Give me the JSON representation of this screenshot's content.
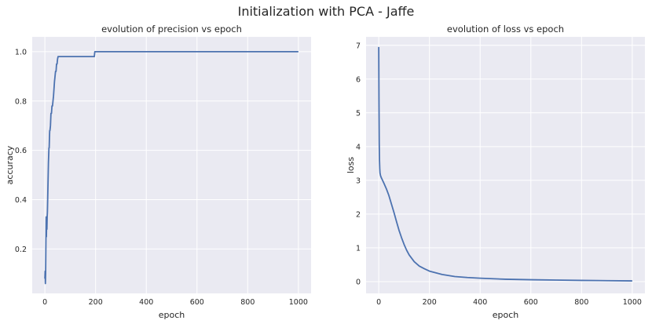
{
  "suptitle": "Initialization with PCA - Jaffe",
  "style": {
    "background": "#EAEAF2",
    "grid": "#FFFFFF",
    "line": "#4C72B0",
    "text": "#262626"
  },
  "chart_data": [
    {
      "type": "line",
      "title": "evolution of precision vs epoch",
      "xlabel": "epoch",
      "ylabel": "accuracy",
      "xlim": [
        -50,
        1050
      ],
      "ylim": [
        0.02,
        1.06
      ],
      "xticks": [
        0,
        200,
        400,
        600,
        800,
        1000
      ],
      "xtick_labels": [
        "0",
        "200",
        "400",
        "600",
        "800",
        "1000"
      ],
      "yticks": [
        0.2,
        0.4,
        0.6,
        0.8,
        1.0
      ],
      "ytick_labels": [
        "0.2",
        "0.4",
        "0.6",
        "0.8",
        "1.0"
      ],
      "grid": true,
      "series": [
        {
          "x": [
            0,
            1,
            2,
            3,
            4,
            5,
            6,
            7,
            8,
            9,
            10,
            11,
            12,
            13,
            14,
            15,
            16,
            17,
            18,
            19,
            20,
            22,
            24,
            26,
            28,
            30,
            32,
            34,
            36,
            38,
            40,
            42,
            44,
            46,
            48,
            50,
            52,
            54,
            56,
            58,
            60,
            63,
            65,
            100,
            150,
            195,
            197,
            200,
            300,
            400,
            500,
            600,
            700,
            800,
            900,
            1000
          ],
          "y": [
            0.08,
            0.11,
            0.06,
            0.1,
            0.22,
            0.33,
            0.25,
            0.33,
            0.28,
            0.33,
            0.35,
            0.4,
            0.45,
            0.5,
            0.55,
            0.58,
            0.61,
            0.61,
            0.65,
            0.68,
            0.68,
            0.7,
            0.75,
            0.75,
            0.78,
            0.78,
            0.8,
            0.82,
            0.85,
            0.88,
            0.9,
            0.92,
            0.92,
            0.95,
            0.95,
            0.97,
            0.98,
            0.98,
            0.98,
            0.98,
            0.98,
            0.98,
            0.98,
            0.98,
            0.98,
            0.98,
            1.0,
            1.0,
            1.0,
            1.0,
            1.0,
            1.0,
            1.0,
            1.0,
            1.0,
            1.0
          ]
        }
      ]
    },
    {
      "type": "line",
      "title": "evolution of loss vs epoch",
      "xlabel": "epoch",
      "ylabel": "loss",
      "xlim": [
        -50,
        1050
      ],
      "ylim": [
        -0.35,
        7.25
      ],
      "xticks": [
        0,
        200,
        400,
        600,
        800,
        1000
      ],
      "xtick_labels": [
        "0",
        "200",
        "400",
        "600",
        "800",
        "1000"
      ],
      "yticks": [
        0,
        1,
        2,
        3,
        4,
        5,
        6,
        7
      ],
      "ytick_labels": [
        "0",
        "1",
        "2",
        "3",
        "4",
        "5",
        "6",
        "7"
      ],
      "grid": true,
      "series": [
        {
          "x": [
            0,
            1,
            2,
            3,
            4,
            5,
            7,
            10,
            15,
            20,
            30,
            40,
            50,
            60,
            70,
            80,
            90,
            100,
            110,
            120,
            140,
            160,
            180,
            200,
            250,
            300,
            350,
            400,
            500,
            600,
            700,
            800,
            900,
            1000
          ],
          "y": [
            6.95,
            5.3,
            4.1,
            3.6,
            3.35,
            3.22,
            3.14,
            3.08,
            3.0,
            2.92,
            2.75,
            2.55,
            2.3,
            2.05,
            1.78,
            1.52,
            1.3,
            1.1,
            0.93,
            0.79,
            0.59,
            0.46,
            0.38,
            0.31,
            0.21,
            0.15,
            0.12,
            0.1,
            0.07,
            0.055,
            0.045,
            0.035,
            0.028,
            0.02
          ]
        }
      ]
    }
  ]
}
